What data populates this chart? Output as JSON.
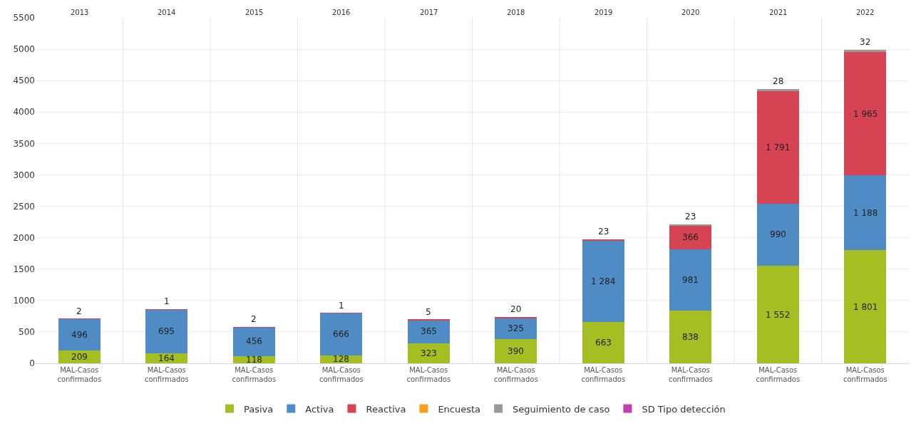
{
  "chart_data": {
    "type": "bar",
    "stacked": true,
    "categories": [
      "MAL-Casos confirmados",
      "MAL-Casos confirmados",
      "MAL-Casos confirmados",
      "MAL-Casos confirmados",
      "MAL-Casos confirmados",
      "MAL-Casos confirmados",
      "MAL-Casos confirmados",
      "MAL-Casos confirmados",
      "MAL-Casos confirmados",
      "MAL-Casos confirmados"
    ],
    "annotations": [
      "2013",
      "2014",
      "2015",
      "2016",
      "2017",
      "2018",
      "2019",
      "2020",
      "2021",
      "2022"
    ],
    "series": [
      {
        "name": "Pasiva",
        "color": "#a5be22",
        "values": [
          209,
          164,
          118,
          128,
          323,
          390,
          663,
          838,
          1552,
          1801
        ],
        "value_labels": [
          "209",
          "164",
          "118",
          "128",
          "323",
          "390",
          "663",
          "838",
          "1 552",
          "1 801"
        ]
      },
      {
        "name": "Activa",
        "color": "#4f8bc4",
        "values": [
          496,
          695,
          456,
          666,
          365,
          325,
          1284,
          981,
          990,
          1188
        ],
        "value_labels": [
          "496",
          "695",
          "456",
          "666",
          "365",
          "325",
          "1 284",
          "981",
          "990",
          "1 188"
        ]
      },
      {
        "name": "Reactiva",
        "color": "#d64454",
        "values": [
          2,
          1,
          2,
          1,
          5,
          20,
          23,
          366,
          1791,
          1965
        ],
        "value_labels": [
          "2",
          "1",
          "2",
          "1",
          "5",
          "20",
          "23",
          "366",
          "1 791",
          "1 965"
        ]
      },
      {
        "name": "Encuesta",
        "color": "#f7a01e",
        "values": [
          null,
          null,
          null,
          null,
          null,
          null,
          null,
          null,
          null,
          null
        ]
      },
      {
        "name": "Seguimiento de caso",
        "color": "#999999",
        "values": [
          null,
          null,
          null,
          null,
          null,
          null,
          null,
          23,
          28,
          32
        ],
        "value_labels": [
          null,
          null,
          null,
          null,
          null,
          null,
          null,
          "23",
          "28",
          "32"
        ]
      },
      {
        "name": "SD Tipo detección",
        "color": "#c13fae",
        "values": [
          null,
          null,
          null,
          null,
          null,
          null,
          null,
          null,
          null,
          null
        ]
      }
    ],
    "ylim": [
      0,
      5500
    ],
    "yticks": [
      0,
      500,
      1000,
      1500,
      2000,
      2500,
      3000,
      3500,
      4000,
      4500,
      5000,
      5500
    ],
    "grid": "y",
    "legend": "bottom"
  }
}
